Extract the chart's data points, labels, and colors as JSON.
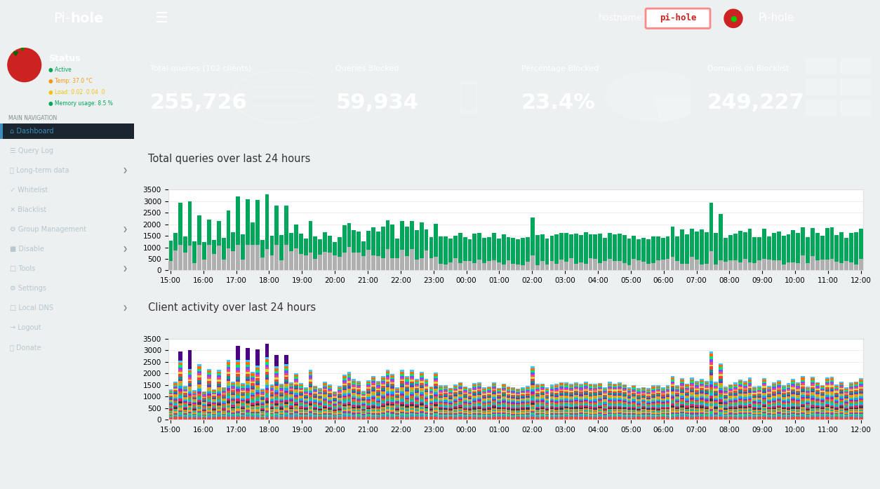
{
  "sidebar_bg": "#2c3e50",
  "header_bg": "#3c8dbc",
  "content_bg": "#ecf0f1",
  "card_colors": [
    "#00a65a",
    "#00c0ef",
    "#f39c12",
    "#dd4b39"
  ],
  "card_titles": [
    "Total queries (102 clients)",
    "Queries Blocked",
    "Percentage Blocked",
    "Domains on Blocklist"
  ],
  "card_values": [
    "255,726",
    "59,934",
    "23.4%",
    "249,227"
  ],
  "chart1_title": "Total queries over last 24 hours",
  "chart2_title": "Client activity over last 24 hours",
  "time_labels": [
    "15:00",
    "16:00",
    "17:00",
    "18:00",
    "19:00",
    "20:00",
    "21:00",
    "22:00",
    "23:00",
    "00:00",
    "01:00",
    "02:00",
    "03:00",
    "04:00",
    "05:00",
    "06:00",
    "07:00",
    "08:00",
    "09:00",
    "10:00",
    "11:00",
    "12:00"
  ],
  "green_color": "#00a65a",
  "gray_color": "#b0b0b0",
  "nav_items": [
    [
      "Dashboard",
      true
    ],
    [
      "Query Log",
      false
    ],
    [
      "Long-term data",
      false
    ],
    [
      "Whitelist",
      false
    ],
    [
      "Blacklist",
      false
    ],
    [
      "Group Management",
      false
    ],
    [
      "Disable",
      false
    ],
    [
      "Tools",
      false
    ],
    [
      "Settings",
      false
    ],
    [
      "Local DNS",
      false
    ],
    [
      "Logout",
      false
    ],
    [
      "Donate",
      false
    ]
  ],
  "status_texts": [
    "Active",
    "Temp: 37.0 °C",
    "Load: 0.02  0.04  0",
    "Memory usage: 8.5 %"
  ],
  "status_colors": [
    "#00a65a",
    "#f39c12",
    "#f1c40f",
    "#00a65a"
  ],
  "client_colors": [
    "#e74c3c",
    "#3498db",
    "#2ecc71",
    "#8e44ad",
    "#f39c12",
    "#1abc9c",
    "#e67e22",
    "#2c3e50",
    "#e91e63",
    "#00bcd4",
    "#4caf50",
    "#ff5722",
    "#9c27b0",
    "#03a9f4",
    "#8bc34a",
    "#ff9800",
    "#673ab7",
    "#009688",
    "#f44336",
    "#cddc39",
    "#ff4081",
    "#7c4dff",
    "#00e676",
    "#ff6d00",
    "#40c4ff"
  ]
}
